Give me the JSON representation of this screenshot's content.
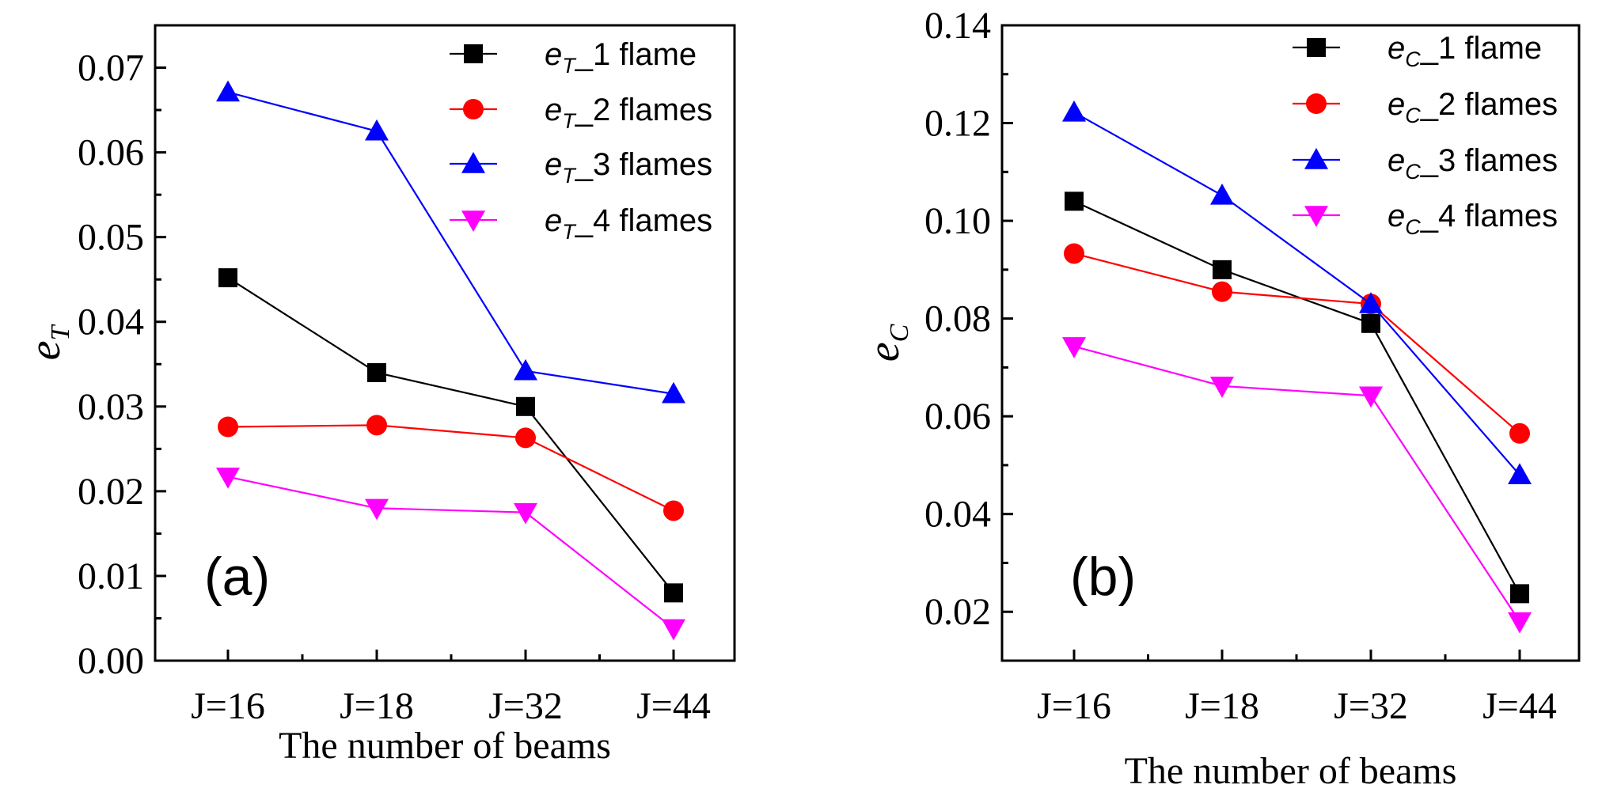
{
  "chart_data": [
    {
      "type": "line",
      "panel_label": "(a)",
      "xlabel": "The number of beams",
      "ylabel": {
        "main": "e",
        "sub": "T"
      },
      "categories": [
        "J=16",
        "J=18",
        "J=32",
        "J=44"
      ],
      "ylim": [
        0,
        0.075
      ],
      "yticks": [
        "0.00",
        "0.01",
        "0.02",
        "0.03",
        "0.04",
        "0.05",
        "0.06",
        "0.07"
      ],
      "yticks_values": [
        0,
        0.01,
        0.02,
        0.03,
        0.04,
        0.05,
        0.06,
        0.07
      ],
      "legend_position": "top-right",
      "series": [
        {
          "name": "1 flame",
          "legend_e": "e",
          "legend_sub": "T",
          "legend_suffix": "_1 flame",
          "color": "#000000",
          "marker": "square",
          "values": [
            0.0452,
            0.034,
            0.03,
            0.008
          ]
        },
        {
          "name": "2 flames",
          "legend_e": "e",
          "legend_sub": "T",
          "legend_suffix": "_2 flames",
          "color": "#ff0000",
          "marker": "circle",
          "values": [
            0.0276,
            0.0278,
            0.0263,
            0.0177
          ]
        },
        {
          "name": "3 flames",
          "legend_e": "e",
          "legend_sub": "T",
          "legend_suffix": "_3 flames",
          "color": "#0000ff",
          "marker": "triangle-up",
          "values": [
            0.0671,
            0.0625,
            0.0342,
            0.0315
          ]
        },
        {
          "name": "4 flames",
          "legend_e": "e",
          "legend_sub": "T",
          "legend_suffix": "_4 flames",
          "color": "#ff00ff",
          "marker": "triangle-down",
          "values": [
            0.0217,
            0.018,
            0.0175,
            0.0038
          ]
        }
      ]
    },
    {
      "type": "line",
      "panel_label": "(b)",
      "xlabel": "The number of beams",
      "ylabel": {
        "main": "e",
        "sub": "C"
      },
      "categories": [
        "J=16",
        "J=18",
        "J=32",
        "J=44"
      ],
      "ylim": [
        0.01,
        0.14
      ],
      "yticks": [
        "0.02",
        "0.04",
        "0.06",
        "0.08",
        "0.10",
        "0.12",
        "0.14"
      ],
      "yticks_values": [
        0.02,
        0.04,
        0.06,
        0.08,
        0.1,
        0.12,
        0.14
      ],
      "legend_position": "top-right",
      "series": [
        {
          "name": "1 flame",
          "legend_e": "e",
          "legend_sub": "C",
          "legend_suffix": "_1 flame",
          "color": "#000000",
          "marker": "square",
          "values": [
            0.104,
            0.09,
            0.079,
            0.0237
          ]
        },
        {
          "name": "2 flames",
          "legend_e": "e",
          "legend_sub": "C",
          "legend_suffix": "_2 flames",
          "color": "#ff0000",
          "marker": "circle",
          "values": [
            0.0933,
            0.0855,
            0.083,
            0.0565
          ]
        },
        {
          "name": "3 flames",
          "legend_e": "e",
          "legend_sub": "C",
          "legend_suffix": "_3 flames",
          "color": "#0000ff",
          "marker": "triangle-up",
          "values": [
            0.1222,
            0.1052,
            0.083,
            0.048
          ]
        },
        {
          "name": "4 flames",
          "legend_e": "e",
          "legend_sub": "C",
          "legend_suffix": "_4 flames",
          "color": "#ff00ff",
          "marker": "triangle-down",
          "values": [
            0.0743,
            0.0662,
            0.0642,
            0.018
          ]
        }
      ]
    }
  ]
}
